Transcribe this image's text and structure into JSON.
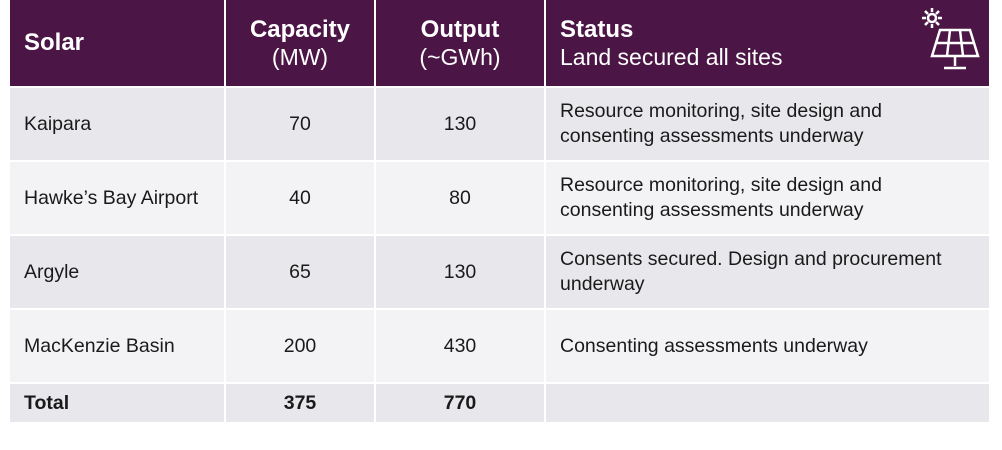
{
  "table": {
    "header": [
      {
        "title": "Solar"
      },
      {
        "title": "Capacity",
        "subtitle": "(MW)"
      },
      {
        "title": "Output",
        "subtitle": "(~GWh)"
      },
      {
        "title": "Status",
        "subtitle": "Land secured all sites"
      }
    ],
    "rows": [
      [
        "Kaipara",
        70,
        130,
        "Resource monitoring, site design and consenting assessments underway"
      ],
      [
        "Hawke’s Bay Airport",
        40,
        80,
        "Resource monitoring, site design and consenting assessments underway"
      ],
      [
        "Argyle",
        65,
        130,
        "Consents secured. Design and procurement underway"
      ],
      [
        "MacKenzie Basin",
        200,
        430,
        "Consenting assessments underway"
      ]
    ],
    "total": [
      "Total",
      375,
      770
    ]
  }
}
